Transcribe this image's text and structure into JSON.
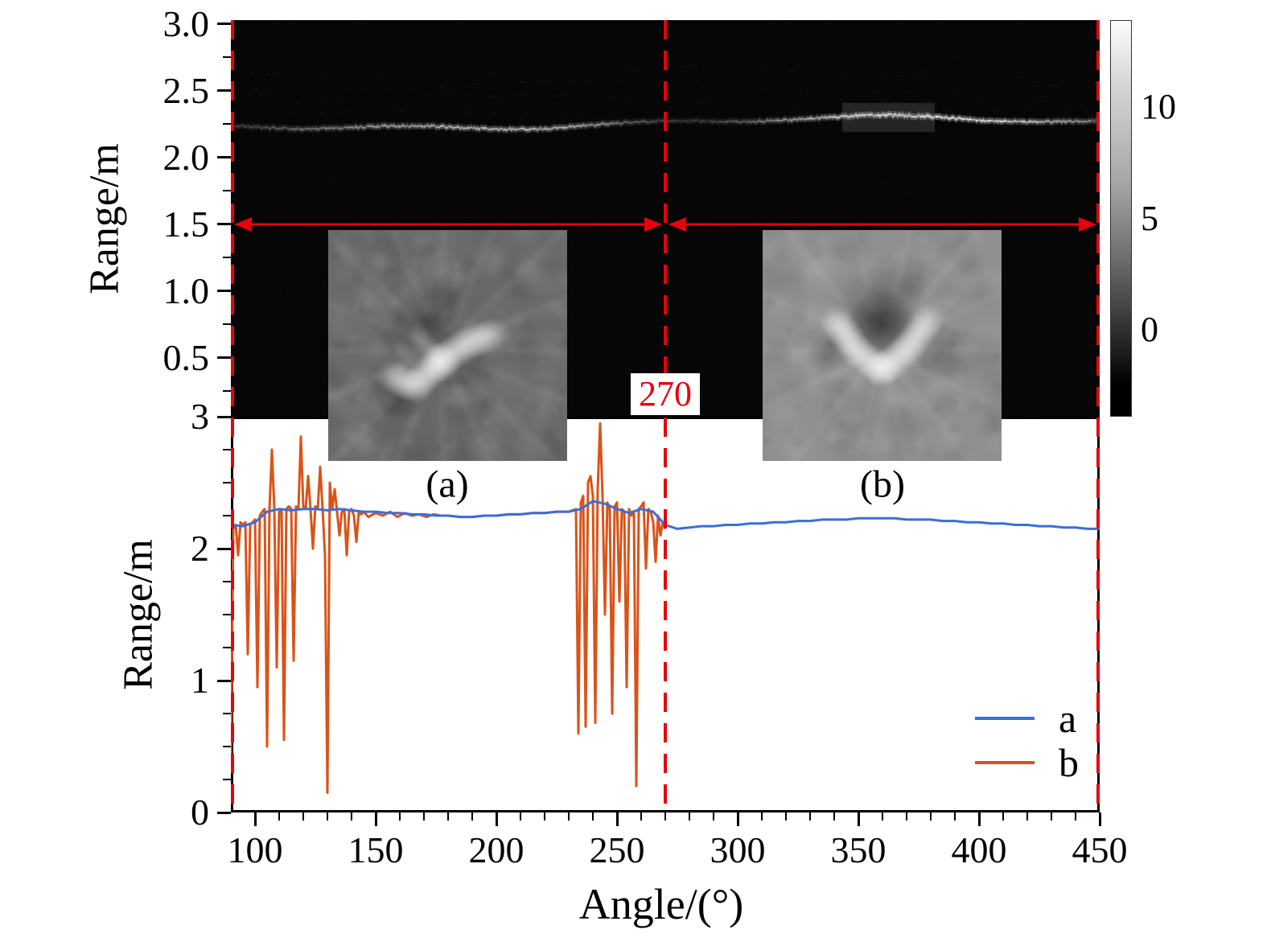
{
  "figure": {
    "background": "#ffffff",
    "annotation_color": "#e8000d"
  },
  "top_panel": {
    "ylabel": "Range/m",
    "ytick_labels": [
      "3.0",
      "2.5",
      "2.0",
      "1.5",
      "1.0",
      "0.5"
    ],
    "ytick_values": [
      3.0,
      2.5,
      2.0,
      1.5,
      1.0,
      0.5
    ],
    "colorbar": {
      "tick_labels": [
        "10",
        "5",
        "0"
      ],
      "tick_values": [
        10,
        5,
        0
      ]
    },
    "insets": [
      {
        "label": "(a)"
      },
      {
        "label": "(b)"
      }
    ]
  },
  "annotations": {
    "boundary_label": "270",
    "dashed_line_angles": [
      90,
      270,
      450
    ],
    "arrow_range_m": 1.5
  },
  "bottom_panel": {
    "ylabel": "Range/m",
    "xlabel": "Angle/(°)",
    "ytick_labels": [
      "3",
      "2",
      "1",
      "0"
    ],
    "ytick_values": [
      3,
      2,
      1,
      0
    ],
    "xtick_labels": [
      "100",
      "150",
      "200",
      "250",
      "300",
      "350",
      "400",
      "450"
    ],
    "xtick_values": [
      100,
      150,
      200,
      250,
      300,
      350,
      400,
      450
    ]
  },
  "chart_data": [
    {
      "type": "heatmap",
      "title": "",
      "xlabel": "Angle/(°)",
      "ylabel": "Range/m",
      "x_range": [
        90,
        450
      ],
      "y_range": [
        0.05,
        3.0
      ],
      "description": "Grayscale B-scan image, dark background with a bright target trace near range 2.2-2.3 m across all angles; dimmer near angle 270; faint speckle streaks near range 2.6-2.8 m",
      "trace_range_m": 2.25,
      "colorbar_ticks": [
        0,
        5,
        10
      ],
      "colorbar_range": [
        -3,
        13
      ]
    },
    {
      "type": "line",
      "title": "",
      "xlabel": "Angle/(°)",
      "ylabel": "Range/m",
      "xlim": [
        90,
        450
      ],
      "ylim": [
        0,
        3
      ],
      "xticks": [
        100,
        150,
        200,
        250,
        300,
        350,
        400,
        450
      ],
      "yticks": [
        0,
        1,
        2,
        3
      ],
      "legend_position": "lower right",
      "grid": false,
      "series": [
        {
          "name": "a",
          "color": "#3a6fd8",
          "x": [
            90,
            95,
            100,
            105,
            110,
            115,
            120,
            125,
            130,
            135,
            140,
            145,
            150,
            155,
            160,
            165,
            170,
            175,
            180,
            185,
            190,
            195,
            200,
            205,
            210,
            215,
            220,
            225,
            230,
            235,
            240,
            245,
            250,
            255,
            260,
            265,
            270,
            275,
            280,
            285,
            290,
            295,
            300,
            305,
            310,
            315,
            320,
            325,
            330,
            335,
            340,
            345,
            350,
            355,
            360,
            365,
            370,
            375,
            380,
            385,
            390,
            395,
            400,
            405,
            410,
            415,
            420,
            425,
            430,
            435,
            440,
            445,
            450
          ],
          "y": [
            2.18,
            2.17,
            2.2,
            2.28,
            2.3,
            2.29,
            2.3,
            2.3,
            2.29,
            2.3,
            2.29,
            2.28,
            2.28,
            2.27,
            2.27,
            2.26,
            2.26,
            2.25,
            2.25,
            2.24,
            2.24,
            2.25,
            2.25,
            2.26,
            2.26,
            2.27,
            2.27,
            2.28,
            2.28,
            2.3,
            2.36,
            2.34,
            2.3,
            2.27,
            2.3,
            2.28,
            2.18,
            2.15,
            2.16,
            2.17,
            2.17,
            2.18,
            2.18,
            2.19,
            2.19,
            2.2,
            2.2,
            2.21,
            2.21,
            2.22,
            2.22,
            2.22,
            2.23,
            2.23,
            2.23,
            2.23,
            2.22,
            2.22,
            2.22,
            2.21,
            2.21,
            2.2,
            2.2,
            2.19,
            2.19,
            2.18,
            2.18,
            2.17,
            2.17,
            2.16,
            2.16,
            2.15,
            2.15
          ]
        },
        {
          "name": "b",
          "color": "#d95319",
          "x": [
            90,
            91,
            92,
            93,
            94,
            95,
            96,
            97,
            98,
            99,
            100,
            101,
            102,
            103,
            104,
            105,
            106,
            107,
            108,
            109,
            110,
            111,
            112,
            113,
            114,
            115,
            116,
            117,
            118,
            119,
            120,
            121,
            122,
            123,
            124,
            125,
            126,
            127,
            128,
            129,
            130,
            131,
            132,
            133,
            134,
            135,
            136,
            137,
            138,
            139,
            140,
            141,
            142,
            143,
            144,
            145,
            147,
            150,
            153,
            156,
            159,
            162,
            165,
            168,
            171,
            174,
            177,
            180,
            185,
            190,
            195,
            200,
            205,
            210,
            215,
            220,
            225,
            230,
            233,
            234,
            235,
            236,
            237,
            238,
            239,
            240,
            241,
            242,
            243,
            244,
            245,
            246,
            247,
            248,
            249,
            250,
            251,
            252,
            253,
            254,
            255,
            256,
            257,
            258,
            259,
            260,
            261,
            262,
            263,
            264,
            265,
            266,
            267,
            268,
            269,
            270
          ],
          "y": [
            0.4,
            2.15,
            2.18,
            1.95,
            2.2,
            2.18,
            2.2,
            1.2,
            2.18,
            2.2,
            2.22,
            0.95,
            2.25,
            2.28,
            2.3,
            0.5,
            2.3,
            2.75,
            2.3,
            1.1,
            2.28,
            2.3,
            0.55,
            2.3,
            2.32,
            2.3,
            1.15,
            2.32,
            2.3,
            2.85,
            2.32,
            2.3,
            2.55,
            2.3,
            2.0,
            2.32,
            2.3,
            2.62,
            2.3,
            1.95,
            0.15,
            2.5,
            2.3,
            2.45,
            2.28,
            2.1,
            2.28,
            2.3,
            1.95,
            2.28,
            2.3,
            2.25,
            2.05,
            2.28,
            2.26,
            2.28,
            2.24,
            2.27,
            2.25,
            2.28,
            2.24,
            2.27,
            2.25,
            2.26,
            2.24,
            2.26,
            2.25,
            2.25,
            2.24,
            2.24,
            2.25,
            2.25,
            2.26,
            2.26,
            2.27,
            2.27,
            2.28,
            2.28,
            2.3,
            0.6,
            2.35,
            2.4,
            0.65,
            2.5,
            2.55,
            2.4,
            0.68,
            2.45,
            2.95,
            2.4,
            1.5,
            2.35,
            2.3,
            0.75,
            2.32,
            2.35,
            1.6,
            2.3,
            2.28,
            0.95,
            2.3,
            2.25,
            2.28,
            0.2,
            2.3,
            2.32,
            2.35,
            1.85,
            2.3,
            2.28,
            2.2,
            1.9,
            2.25,
            2.1,
            2.2,
            2.15
          ]
        }
      ],
      "annotations": [
        {
          "text": "270",
          "x": 270
        }
      ]
    }
  ]
}
